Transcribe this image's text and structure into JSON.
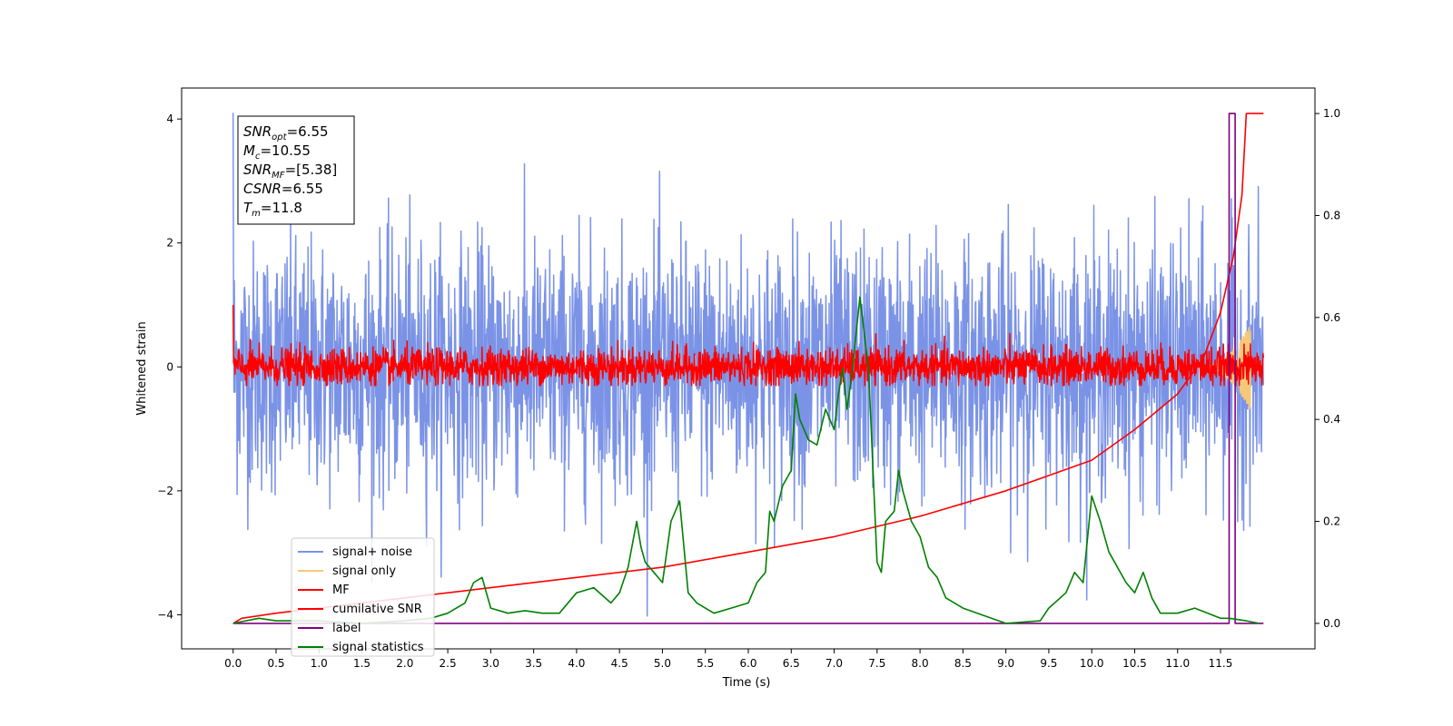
{
  "chart_data": {
    "type": "line",
    "xlabel": "Time (s)",
    "ylabel": "Whitened strain",
    "xlim": [
      -0.6,
      12.6
    ],
    "ylim": [
      -4.55,
      4.5
    ],
    "y2lim": [
      -0.05,
      1.05
    ],
    "x_ticks": [
      "0.0",
      "0.5",
      "1.0",
      "1.5",
      "2.0",
      "2.5",
      "3.0",
      "3.5",
      "4.0",
      "4.5",
      "5.0",
      "5.5",
      "6.0",
      "6.5",
      "7.0",
      "7.5",
      "8.0",
      "8.5",
      "9.0",
      "9.5",
      "10.0",
      "10.5",
      "11.0",
      "11.5"
    ],
    "y_ticks": [
      "4",
      "2",
      "0",
      "−2",
      "−4"
    ],
    "y2_ticks": [
      "1.0",
      "0.8",
      "0.6",
      "0.4",
      "0.2",
      "0.0"
    ],
    "grid": false,
    "legend_position": "lower-left",
    "annotation": {
      "lines": [
        {
          "var": "SNR",
          "sub": "opt",
          "value": "=6.55"
        },
        {
          "var": "M",
          "sub": "c",
          "value": "=10.55"
        },
        {
          "var": "SNR",
          "sub": "MF",
          "value": "=[5.38]"
        },
        {
          "var": "CSNR",
          "sub": "",
          "value": "=6.55"
        },
        {
          "var": "T",
          "sub": "m",
          "value": "=11.8"
        }
      ]
    },
    "series": [
      {
        "name": "signal+ noise",
        "color": "#7b93e6",
        "axis": "left",
        "kind": "noise",
        "t_start": 0.0,
        "t_end": 12.0,
        "std": 1.0,
        "peak_max": 4.1,
        "peak_min": -4.1
      },
      {
        "name": "signal only",
        "color": "#f5c97a",
        "axis": "left",
        "kind": "chirp",
        "t_start": 11.3,
        "t_end": 11.85,
        "max_amplitude": 0.7
      },
      {
        "name": "MF",
        "color": "#ff0000",
        "axis": "left",
        "kind": "noise",
        "t_start": 0.0,
        "t_end": 12.0,
        "std": 0.15,
        "peak_max": 1.0,
        "peak_min": -0.3
      },
      {
        "name": "cumilative SNR",
        "color": "#ff0000",
        "axis": "right",
        "x": [
          0.0,
          0.1,
          0.5,
          1.0,
          2.0,
          3.0,
          4.0,
          5.0,
          6.0,
          7.0,
          8.0,
          9.0,
          9.5,
          10.0,
          10.5,
          11.0,
          11.3,
          11.5,
          11.65,
          11.75,
          11.8,
          12.0
        ],
        "y": [
          0.0,
          0.01,
          0.02,
          0.03,
          0.05,
          0.07,
          0.09,
          0.11,
          0.14,
          0.17,
          0.21,
          0.26,
          0.29,
          0.32,
          0.38,
          0.45,
          0.52,
          0.61,
          0.72,
          0.84,
          1.0,
          1.0
        ]
      },
      {
        "name": "label",
        "color": "#800080",
        "axis": "right",
        "x": [
          0.0,
          11.6,
          11.6,
          11.67,
          11.67,
          11.8,
          11.8,
          12.0
        ],
        "y": [
          0.0,
          0.0,
          1.0,
          1.0,
          0.0,
          0.0,
          0.0,
          0.0
        ]
      },
      {
        "name": "signal statistics",
        "color": "#008000",
        "axis": "right",
        "x": [
          0.0,
          0.3,
          0.5,
          1.0,
          1.5,
          2.0,
          2.3,
          2.5,
          2.7,
          2.8,
          2.9,
          2.95,
          3.0,
          3.2,
          3.4,
          3.6,
          3.8,
          4.0,
          4.2,
          4.4,
          4.5,
          4.6,
          4.7,
          4.75,
          4.8,
          4.9,
          5.0,
          5.1,
          5.2,
          5.3,
          5.4,
          5.5,
          5.6,
          5.8,
          6.0,
          6.1,
          6.2,
          6.25,
          6.3,
          6.4,
          6.5,
          6.55,
          6.6,
          6.65,
          6.7,
          6.8,
          6.9,
          7.0,
          7.05,
          7.1,
          7.15,
          7.2,
          7.3,
          7.4,
          7.5,
          7.55,
          7.6,
          7.7,
          7.75,
          7.8,
          7.9,
          8.0,
          8.1,
          8.2,
          8.3,
          8.5,
          9.0,
          9.4,
          9.5,
          9.7,
          9.8,
          9.9,
          10.0,
          10.1,
          10.2,
          10.4,
          10.5,
          10.6,
          10.7,
          10.8,
          11.0,
          11.2,
          11.5,
          11.6,
          11.8,
          11.95
        ],
        "y": [
          0.0,
          0.01,
          0.005,
          0.005,
          0.0,
          0.005,
          0.01,
          0.02,
          0.04,
          0.08,
          0.09,
          0.06,
          0.03,
          0.02,
          0.025,
          0.02,
          0.02,
          0.06,
          0.07,
          0.04,
          0.06,
          0.11,
          0.2,
          0.15,
          0.12,
          0.1,
          0.08,
          0.2,
          0.24,
          0.06,
          0.04,
          0.03,
          0.02,
          0.03,
          0.04,
          0.08,
          0.1,
          0.22,
          0.2,
          0.27,
          0.3,
          0.45,
          0.4,
          0.38,
          0.36,
          0.35,
          0.42,
          0.38,
          0.45,
          0.5,
          0.42,
          0.48,
          0.64,
          0.5,
          0.12,
          0.1,
          0.2,
          0.22,
          0.3,
          0.26,
          0.2,
          0.17,
          0.11,
          0.09,
          0.05,
          0.03,
          0.0,
          0.005,
          0.03,
          0.06,
          0.1,
          0.08,
          0.25,
          0.2,
          0.14,
          0.08,
          0.06,
          0.1,
          0.05,
          0.02,
          0.02,
          0.03,
          0.01,
          0.01,
          0.005,
          0.0
        ]
      }
    ]
  }
}
